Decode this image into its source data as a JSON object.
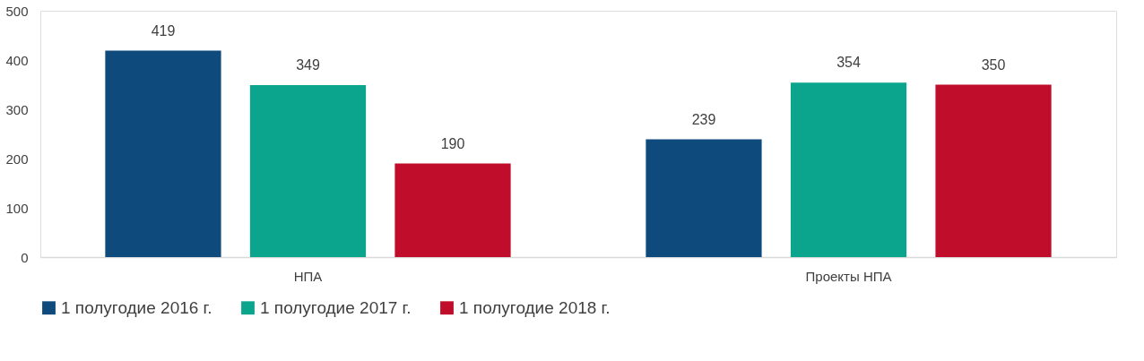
{
  "chart_data": {
    "type": "bar",
    "categories": [
      "НПА",
      "Проекты НПА"
    ],
    "series": [
      {
        "name": "1 полугодие 2016 г.",
        "color": "#0e4b7c",
        "values": [
          419,
          239
        ]
      },
      {
        "name": "1 полугодие 2017 г.",
        "color": "#0ba48c",
        "values": [
          349,
          354
        ]
      },
      {
        "name": "1 полугодие 2018 г.",
        "color": "#c00d2b",
        "values": [
          190,
          350
        ]
      }
    ],
    "ylim": [
      0,
      500
    ],
    "yticks": [
      0,
      100,
      200,
      300,
      400,
      500
    ],
    "grid": false,
    "legend": "bottom",
    "data_labels": true
  }
}
